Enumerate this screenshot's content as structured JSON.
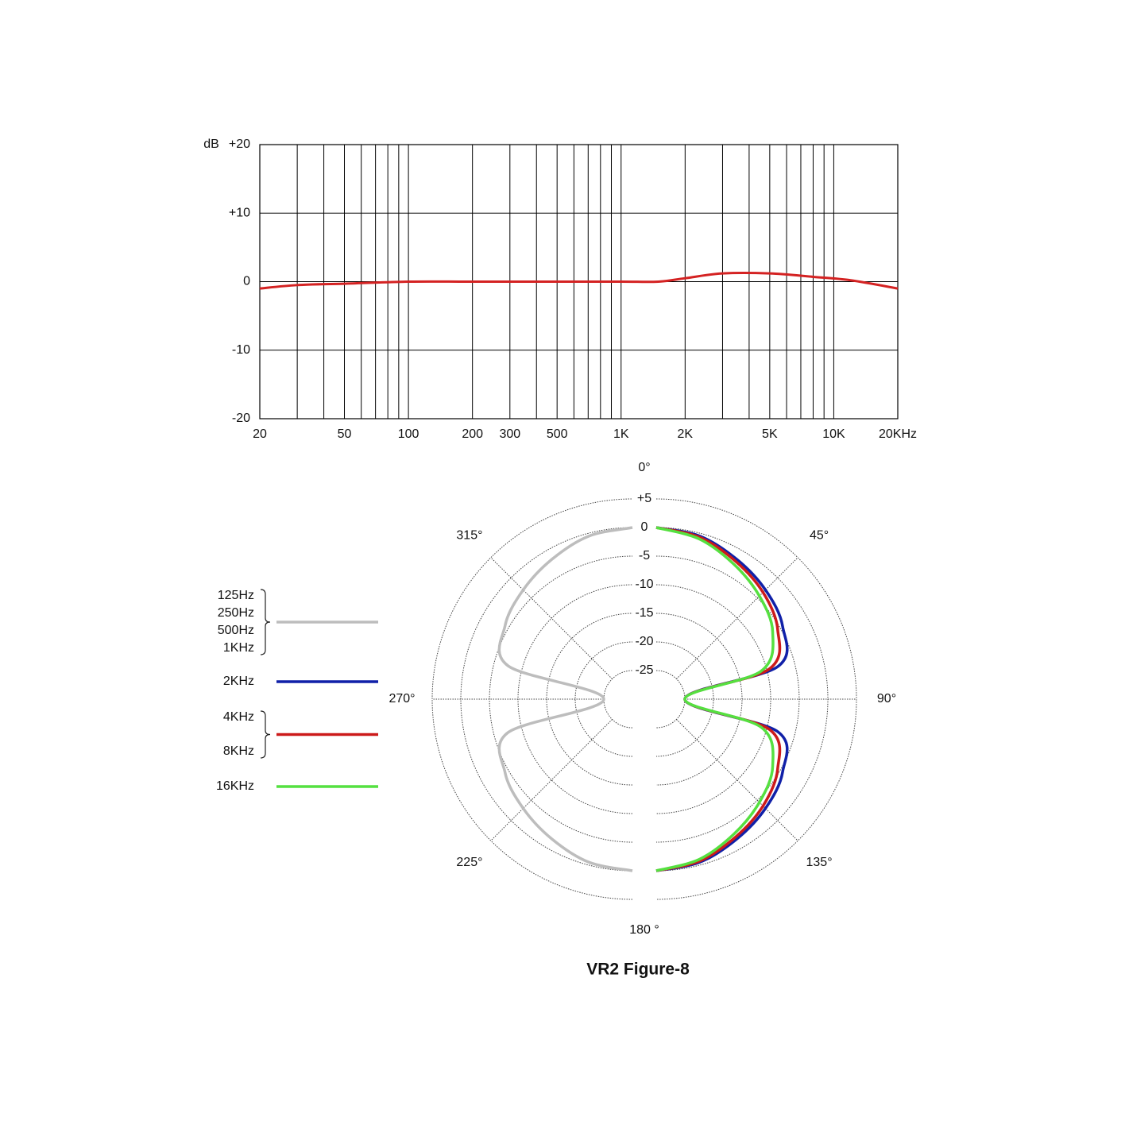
{
  "chart_data": [
    {
      "type": "line",
      "ylabel": "dB",
      "xscale": "log",
      "xlim": [
        20,
        20000
      ],
      "xticks": [
        20,
        50,
        100,
        200,
        300,
        500,
        {
          "value": 1000,
          "label": "1K"
        },
        {
          "value": 2000,
          "label": "2K"
        },
        {
          "value": 5000,
          "label": "5K"
        },
        {
          "value": 10000,
          "label": "10K"
        },
        {
          "value": 20000,
          "label": "20KHz"
        }
      ],
      "minor_xticks": [
        30,
        40,
        60,
        70,
        80,
        90,
        400,
        600,
        700,
        800,
        900,
        3000,
        4000,
        6000,
        7000,
        8000,
        9000
      ],
      "ylim": [
        -20,
        20
      ],
      "yticks": [
        {
          "value": 20,
          "label": "+20"
        },
        {
          "value": 10,
          "label": "+10"
        },
        0,
        -10,
        -20
      ],
      "grid": true,
      "series": [
        {
          "color": "#d42222",
          "x": [
            20,
            30,
            50,
            100,
            200,
            500,
            1000,
            1500,
            2000,
            3000,
            5000,
            8000,
            12000,
            20000
          ],
          "values": [
            -1,
            -0.5,
            -0.3,
            0,
            0,
            0,
            0,
            0,
            0.5,
            1.2,
            1.2,
            0.7,
            0.2,
            -1
          ]
        }
      ]
    },
    {
      "type": "polar",
      "title": "VR2 Figure-8",
      "thetaticks": [
        {
          "value": 0,
          "label": "0°"
        },
        {
          "value": 45,
          "label": "45°"
        },
        {
          "value": 90,
          "label": "90°"
        },
        {
          "value": 135,
          "label": "135°"
        },
        {
          "value": 180,
          "label": "180 °"
        },
        {
          "value": 225,
          "label": "225°"
        },
        {
          "value": 270,
          "label": "270°"
        },
        {
          "value": 315,
          "label": "315°"
        }
      ],
      "rlim": [
        -30,
        5
      ],
      "rticks": [
        {
          "value": 5,
          "label": "+5"
        },
        0,
        -5,
        -10,
        -15,
        -20,
        -25
      ],
      "series": [
        {
          "names": [
            "125Hz",
            "250Hz",
            "500Hz",
            "1KHz"
          ],
          "color": "#bdbdbd",
          "theta": [
            180,
            195,
            210,
            225,
            240,
            255,
            270,
            285,
            300,
            315,
            330,
            345,
            360
          ],
          "values": [
            0,
            -0.5,
            -1.8,
            -3,
            -4.3,
            -7.5,
            -25,
            -7.5,
            -4.3,
            -3,
            -1.8,
            -0.5,
            0
          ]
        },
        {
          "names": [
            "2KHz"
          ],
          "color": "#1020a8",
          "theta": [
            0,
            15,
            30,
            45,
            60,
            75,
            90,
            105,
            120,
            135,
            150,
            165,
            180
          ],
          "values": [
            0,
            -0.5,
            -1.8,
            -3,
            -4.5,
            -8,
            -25,
            -8,
            -4.5,
            -3,
            -1.8,
            -0.5,
            0
          ]
        },
        {
          "names": [
            "4KHz",
            "8KHz"
          ],
          "color": "#cc1a1a",
          "theta": [
            0,
            15,
            30,
            45,
            60,
            75,
            90,
            105,
            120,
            135,
            150,
            165,
            180
          ],
          "values": [
            0,
            -0.7,
            -2.2,
            -3.6,
            -5.5,
            -9.5,
            -25,
            -9.5,
            -5.5,
            -3.6,
            -2.2,
            -0.7,
            0
          ]
        },
        {
          "names": [
            "16KHz"
          ],
          "color": "#55e040",
          "theta": [
            0,
            15,
            30,
            45,
            60,
            75,
            90,
            105,
            120,
            135,
            150,
            165,
            180
          ],
          "values": [
            0,
            -1,
            -2.8,
            -4.5,
            -6.5,
            -11,
            -25,
            -11,
            -6.5,
            -4.5,
            -2.8,
            -1,
            0
          ]
        }
      ]
    }
  ]
}
